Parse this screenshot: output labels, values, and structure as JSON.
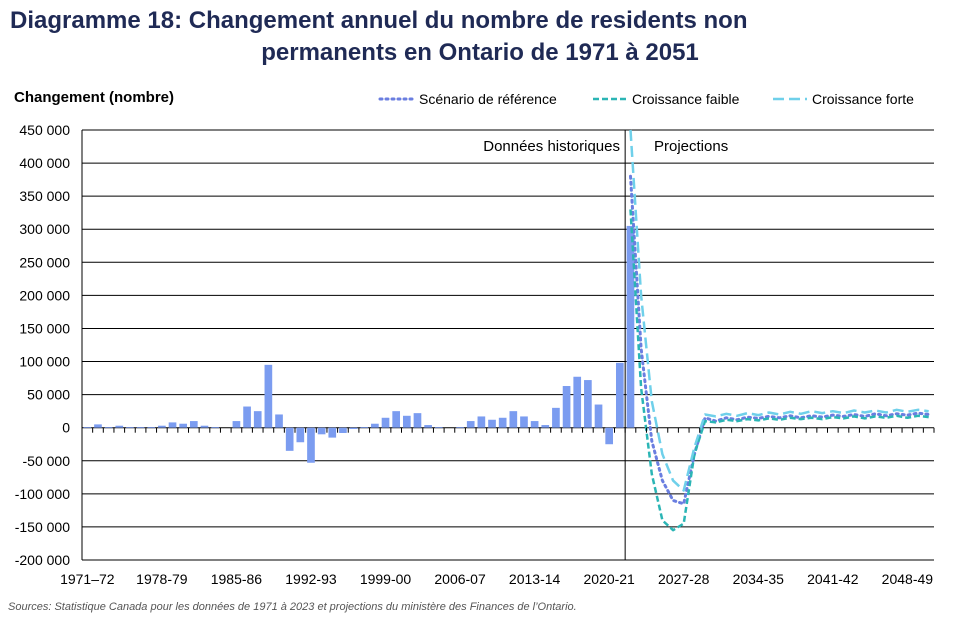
{
  "title_line1": "Diagramme 18: Changement annuel du nombre de residents non",
  "title_line2": "permanents en Ontario de 1971 à 2051",
  "source": "Sources: Statistique Canada pour les données de 1971 à 2023 et projections du ministère des Finances de l’Ontario.",
  "colors": {
    "bars": "#7b9cf0",
    "reference": "#6a7ee0",
    "low": "#2bb5b5",
    "high": "#6fd0ea",
    "title": "#1f2a55",
    "grid": "#000000"
  },
  "chart_data": {
    "type": "bar",
    "ylabel": "Changement (nombre)",
    "ylim": [
      -200000,
      450000
    ],
    "ytick_values": [
      450000,
      400000,
      350000,
      300000,
      250000,
      200000,
      150000,
      100000,
      50000,
      0,
      -50000,
      -100000,
      -150000,
      -200000
    ],
    "ytick_labels": [
      "450 000",
      "400 000",
      "350 000",
      "300 000",
      "250 000",
      "200 000",
      "150 000",
      "100 000",
      "50 000",
      "0",
      "-50 000",
      "-100 000",
      "-150 000",
      "-200 000"
    ],
    "xtick_labels": [
      "1971–72",
      "1978-79",
      "1985-86",
      "1992-93",
      "1999-00",
      "2006-07",
      "2013-14",
      "2020-21",
      "2027-28",
      "2034-35",
      "2041-42",
      "2048-49"
    ],
    "xtick_start_year": 1971,
    "xtick_step_years": 7,
    "first_year": 1971,
    "last_year": 2050,
    "grid": true,
    "legend_position": "top-right",
    "annotations": {
      "historical": "Données historiques",
      "projections": "Projections"
    },
    "bars": {
      "name": "Données historiques",
      "start_year": 1971,
      "values": [
        1000,
        5000,
        1000,
        3000,
        1000,
        1000,
        1000,
        3000,
        8000,
        6000,
        10000,
        3000,
        1000,
        0,
        10000,
        32000,
        25000,
        95000,
        20000,
        -35000,
        -22000,
        -53000,
        -10000,
        -15000,
        -8000,
        -2000,
        1000,
        6000,
        15000,
        25000,
        18000,
        22000,
        4000,
        1000,
        0,
        1000,
        10000,
        17000,
        12000,
        15000,
        25000,
        17000,
        10000,
        4000,
        30000,
        63000,
        77000,
        72000,
        35000,
        -25000,
        98000,
        305000
      ]
    },
    "series": [
      {
        "name": "Scénario de référence",
        "x_years": [
          2022,
          2023,
          2024,
          2025,
          2026,
          2027,
          2028,
          2029,
          2030,
          2031,
          2032,
          2033,
          2034,
          2035,
          2036,
          2037,
          2038,
          2039,
          2040,
          2041,
          2042,
          2043,
          2044,
          2045,
          2046,
          2047,
          2048,
          2049,
          2050
        ],
        "values": [
          380000,
          120000,
          -20000,
          -80000,
          -110000,
          -115000,
          -40000,
          15000,
          10000,
          15000,
          12000,
          16000,
          14000,
          17000,
          15000,
          18000,
          15000,
          18000,
          16000,
          19000,
          17000,
          20000,
          17000,
          21000,
          18000,
          21000,
          19000,
          22000,
          20000
        ]
      },
      {
        "name": "Croissance faible",
        "x_years": [
          2022,
          2023,
          2024,
          2025,
          2026,
          2027,
          2028,
          2029,
          2030,
          2031,
          2032,
          2033,
          2034,
          2035,
          2036,
          2037,
          2038,
          2039,
          2040,
          2041,
          2042,
          2043,
          2044,
          2045,
          2046,
          2047,
          2048,
          2049,
          2050
        ],
        "values": [
          330000,
          60000,
          -70000,
          -140000,
          -155000,
          -145000,
          -40000,
          10000,
          8000,
          12000,
          10000,
          13000,
          11000,
          14000,
          12000,
          15000,
          13000,
          15000,
          13000,
          16000,
          14000,
          17000,
          14000,
          17000,
          15000,
          18000,
          15000,
          18000,
          16000
        ]
      },
      {
        "name": "Croissance forte",
        "x_years": [
          2022,
          2023,
          2024,
          2025,
          2026,
          2027,
          2028,
          2029,
          2030,
          2031,
          2032,
          2033,
          2034,
          2035,
          2036,
          2037,
          2038,
          2039,
          2040,
          2041,
          2042,
          2043,
          2044,
          2045,
          2046,
          2047,
          2048,
          2049,
          2050
        ],
        "values": [
          450000,
          200000,
          40000,
          -40000,
          -80000,
          -95000,
          -30000,
          20000,
          17000,
          21000,
          18000,
          22000,
          19000,
          23000,
          20000,
          24000,
          21000,
          25000,
          22000,
          25000,
          22000,
          26000,
          23000,
          26000,
          23000,
          27000,
          24000,
          27000,
          25000
        ]
      }
    ]
  }
}
